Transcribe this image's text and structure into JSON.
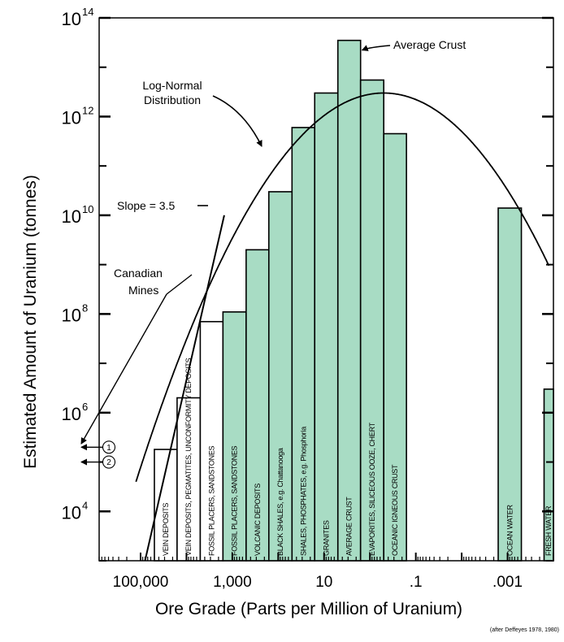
{
  "chart_data": {
    "type": "bar",
    "xlabel": "Ore Grade (Parts per Million of Uranium)",
    "ylabel": "Estimated Amount of Uranium (tonnes)",
    "credit": "(after Deffeyes 1978, 1980)",
    "y_scale": "log",
    "ylim": [
      1000,
      100000000000000
    ],
    "y_ticks": [
      {
        "base": "10",
        "exp": "4",
        "value": 10000
      },
      {
        "base": "10",
        "exp": "6",
        "value": 1000000
      },
      {
        "base": "10",
        "exp": "8",
        "value": 100000000
      },
      {
        "base": "10",
        "exp": "10",
        "value": 10000000000
      },
      {
        "base": "10",
        "exp": "12",
        "value": 1000000000000
      },
      {
        "base": "10",
        "exp": "14",
        "value": 100000000000000
      }
    ],
    "x_scale": "log, decreasing",
    "xlim": [
      800000,
      0.0001
    ],
    "x_ticks": [
      {
        "label": "100,000",
        "value": 100000
      },
      {
        "label": "1,000",
        "value": 1000
      },
      {
        "label": "10",
        "value": 10
      },
      {
        "label": ".1",
        "value": 0.1
      },
      {
        "label": ".001",
        "value": 0.001
      }
    ],
    "bars": [
      {
        "label": "VEIN DEPOSITS",
        "x_left": 50000,
        "x_right": 16000,
        "value": 180000,
        "filled": false
      },
      {
        "label": "VEIN DEPOSITS, PEGMATITES, UNCONFORMITY DEPOSITS",
        "x_left": 16000,
        "x_right": 5000,
        "value": 2000000,
        "filled": false
      },
      {
        "label": "FOSSIL PLACERS, SANDSTONES",
        "x_left": 5000,
        "x_right": 1600,
        "value": 70000000,
        "filled": false
      },
      {
        "label": "FOSSIL PLACERS, SANDSTONES",
        "x_left": 1600,
        "x_right": 500,
        "value": 110000000,
        "filled": true
      },
      {
        "label": "VOLCANIC DEPOSITS",
        "x_left": 500,
        "x_right": 160,
        "value": 2000000000,
        "filled": true
      },
      {
        "label": "BLACK SHALES, e.g. Chattanooga",
        "x_left": 160,
        "x_right": 50,
        "value": 30000000000,
        "filled": true
      },
      {
        "label": "SHALES, PHOSPHATES, e.g. Phosphoria",
        "x_left": 50,
        "x_right": 16,
        "value": 600000000000,
        "filled": true
      },
      {
        "label": "GRANITES",
        "x_left": 16,
        "x_right": 5,
        "value": 3000000000000,
        "filled": true
      },
      {
        "label": "AVERAGE CRUST",
        "x_left": 5,
        "x_right": 1.6,
        "value": 35000000000000,
        "filled": true
      },
      {
        "label": "EVAPORITES, SILICEOUS OOZE, CHERT",
        "x_left": 1.6,
        "x_right": 0.5,
        "value": 5500000000000,
        "filled": true
      },
      {
        "label": "OCEANIC IGNEOUS CRUST",
        "x_left": 0.5,
        "x_right": 0.16,
        "value": 450000000000,
        "filled": true
      },
      {
        "label": "OCEAN WATER",
        "x_left": 0.0016,
        "x_right": 0.0005,
        "value": 14000000000,
        "filled": true
      },
      {
        "label": "FRESH WATER",
        "x_left": 0.00016,
        "x_right": 0.0001,
        "value": 3000000,
        "filled": true
      }
    ],
    "curve": {
      "label": "Log-Normal Distribution",
      "type": "log-normal",
      "peak_grade_ppm": 0.5,
      "peak_tonnes": 3000000000000
    },
    "slope_line": {
      "label": "Slope = 3.5",
      "points": [
        [
          80000,
          1000
        ],
        [
          1500,
          10000000000
        ]
      ]
    },
    "annotations": [
      {
        "text": "Average Crust",
        "points_to": "AVERAGE CRUST"
      },
      {
        "text": "Log-Normal Distribution",
        "points_to": "curve"
      },
      {
        "text": "Slope = 3.5",
        "points_to": "slope_line"
      },
      {
        "text": "Canadian Mines",
        "points_to": "mines"
      }
    ],
    "mines": [
      {
        "label": "1",
        "value": 200000
      },
      {
        "label": "2",
        "value": 100000
      }
    ],
    "fill_color": "#a8dcc4",
    "line_color": "#000000"
  }
}
